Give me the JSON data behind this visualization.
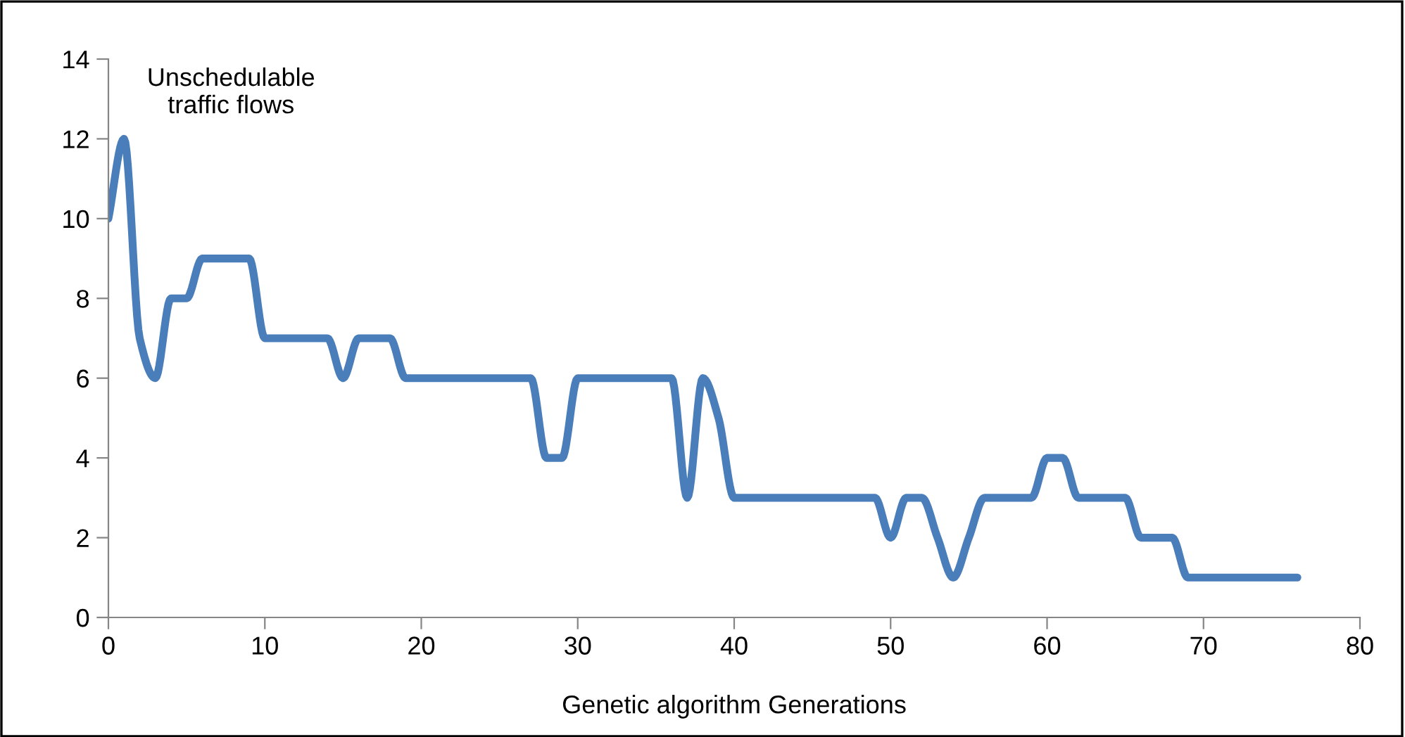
{
  "chart_data": {
    "type": "line",
    "ylabel": "Unschedulable\ntraffic flows",
    "xlabel": "Genetic algorithm Generations",
    "x": [
      0,
      1,
      2,
      3,
      4,
      5,
      6,
      7,
      8,
      9,
      10,
      11,
      12,
      13,
      14,
      15,
      16,
      17,
      18,
      19,
      20,
      21,
      22,
      23,
      24,
      25,
      26,
      27,
      28,
      29,
      30,
      31,
      32,
      33,
      34,
      35,
      36,
      37,
      38,
      39,
      40,
      41,
      42,
      43,
      44,
      45,
      46,
      47,
      48,
      49,
      50,
      51,
      52,
      53,
      54,
      55,
      56,
      57,
      58,
      59,
      60,
      61,
      62,
      63,
      64,
      65,
      66,
      67,
      68,
      69,
      70,
      71,
      72,
      73,
      74,
      75,
      76
    ],
    "series": [
      {
        "color": "#4a7ebb",
        "values": [
          10,
          12,
          7,
          6,
          8,
          8,
          9,
          9,
          9,
          9,
          7,
          7,
          7,
          7,
          7,
          6,
          7,
          7,
          7,
          6,
          6,
          6,
          6,
          6,
          6,
          6,
          6,
          6,
          4,
          4,
          6,
          6,
          6,
          6,
          6,
          6,
          6,
          3,
          6,
          5,
          3,
          3,
          3,
          3,
          3,
          3,
          3,
          3,
          3,
          3,
          2,
          3,
          3,
          2,
          1,
          2,
          3,
          3,
          3,
          3,
          4,
          4,
          3,
          3,
          3,
          3,
          2,
          2,
          2,
          1,
          1,
          1,
          1,
          1,
          1,
          1,
          1
        ]
      }
    ],
    "xlim": [
      0,
      80
    ],
    "xticks": [
      0,
      10,
      20,
      30,
      40,
      50,
      60,
      70,
      80
    ],
    "ylim": [
      0,
      14
    ],
    "yticks": [
      0,
      2,
      4,
      6,
      8,
      10,
      12,
      14
    ],
    "grid": false,
    "legend": false,
    "marker": "none",
    "line_style": "solid"
  }
}
